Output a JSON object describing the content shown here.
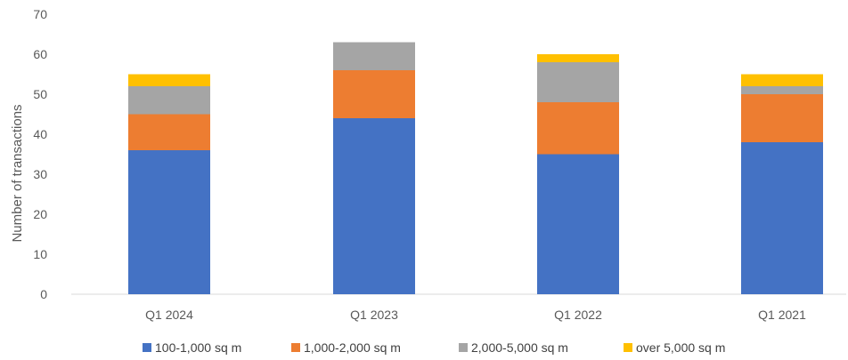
{
  "chart_data": {
    "type": "bar",
    "stacked": true,
    "categories": [
      "Q1 2024",
      "Q1 2023",
      "Q1 2022",
      "Q1 2021"
    ],
    "series": [
      {
        "name": "100-1,000 sq m",
        "color": "#4472C4",
        "values": [
          36,
          44,
          35,
          38
        ]
      },
      {
        "name": "1,000-2,000 sq m",
        "color": "#ED7D31",
        "values": [
          9,
          12,
          13,
          12
        ]
      },
      {
        "name": "2,000-5,000 sq m",
        "color": "#A5A5A5",
        "values": [
          7,
          7,
          10,
          2
        ]
      },
      {
        "name": "over 5,000 sq m",
        "color": "#FFC000",
        "values": [
          3,
          0,
          2,
          3
        ]
      }
    ],
    "ylabel": "Number of transactions",
    "ylim": [
      0,
      70
    ],
    "yticks": [
      0,
      10,
      20,
      30,
      40,
      50,
      60,
      70
    ],
    "grid": false,
    "legend": "bottom"
  }
}
